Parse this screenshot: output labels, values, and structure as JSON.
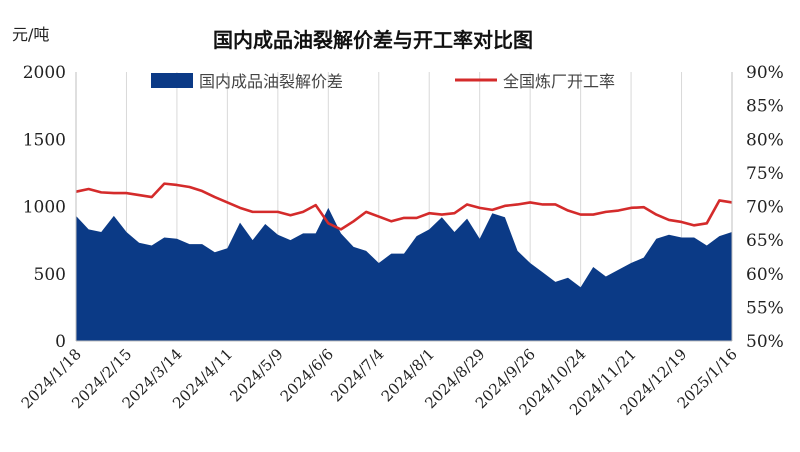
{
  "chart_data": {
    "type": "area",
    "title": "国内成品油裂解价差与开工率对比图",
    "y_left_unit": "元/吨",
    "y_left_ticks": [
      "0",
      "500",
      "1000",
      "1500",
      "2000"
    ],
    "y_right_ticks": [
      "50%",
      "55%",
      "60%",
      "65%",
      "70%",
      "75%",
      "80%",
      "85%",
      "90%"
    ],
    "ylim_left": [
      0,
      2000
    ],
    "ylim_right": [
      50,
      90
    ],
    "grid": "vertical",
    "legend_position": "top",
    "x_tick_labels": [
      "2024/1/18",
      "2024/2/15",
      "2024/3/14",
      "2024/4/11",
      "2024/5/9",
      "2024/6/6",
      "2024/7/4",
      "2024/8/1",
      "2024/8/29",
      "2024/9/26",
      "2024/10/24",
      "2024/11/21",
      "2024/12/19",
      "2025/1/16"
    ],
    "x_tick_index": [
      0,
      4,
      8,
      12,
      16,
      20,
      24,
      28,
      32,
      36,
      40,
      44,
      48,
      52
    ],
    "series": [
      {
        "name": "国内成品油裂解价差",
        "type": "area",
        "axis": "left",
        "color": "#0b3a86",
        "values": [
          930,
          830,
          810,
          930,
          810,
          730,
          710,
          770,
          760,
          720,
          720,
          660,
          690,
          880,
          750,
          870,
          790,
          750,
          800,
          800,
          990,
          800,
          700,
          670,
          580,
          650,
          650,
          780,
          830,
          920,
          810,
          910,
          760,
          950,
          920,
          670,
          580,
          510,
          440,
          470,
          400,
          550,
          480,
          530,
          580,
          620,
          760,
          790,
          770,
          770,
          710,
          780,
          810
        ]
      },
      {
        "name": "全国炼厂开工率",
        "type": "line",
        "axis": "right",
        "color": "#d42b2b",
        "values": [
          72.2,
          72.6,
          72.1,
          72.0,
          72.0,
          71.7,
          71.4,
          73.4,
          73.2,
          72.9,
          72.3,
          71.4,
          70.6,
          69.8,
          69.2,
          69.2,
          69.2,
          68.7,
          69.2,
          70.2,
          67.5,
          66.6,
          67.8,
          69.2,
          68.5,
          67.8,
          68.3,
          68.3,
          69.0,
          68.8,
          69.0,
          70.3,
          69.8,
          69.5,
          70.1,
          70.3,
          70.6,
          70.3,
          70.3,
          69.4,
          68.8,
          68.8,
          69.2,
          69.4,
          69.8,
          69.9,
          68.8,
          68.0,
          67.7,
          67.2,
          67.5,
          70.9,
          70.6
        ]
      }
    ]
  }
}
